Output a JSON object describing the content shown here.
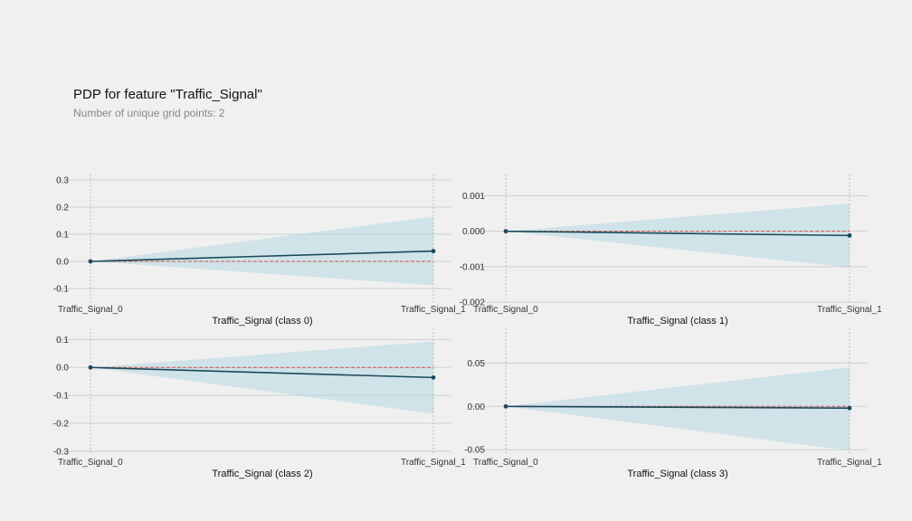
{
  "header": {
    "title": "PDP for feature \"Traffic_Signal\"",
    "subtitle": "Number of unique grid points: 2"
  },
  "colors": {
    "line": "#1a4a5a",
    "band": "#a8d2e0",
    "baseline": "#d9534f",
    "grid": "#d0d0d0",
    "background": "#f0f0f0"
  },
  "chart_data": [
    {
      "type": "line",
      "xlabel": "Traffic_Signal (class 0)",
      "x": [
        "Traffic_Signal_0",
        "Traffic_Signal_1"
      ],
      "y": [
        0.0,
        0.038
      ],
      "upper": [
        0.0,
        0.165
      ],
      "lower": [
        0.0,
        -0.088
      ],
      "ylim": [
        -0.15,
        0.32
      ],
      "yticks": [
        0.3,
        0.2,
        0.1,
        0.0,
        -0.1
      ],
      "ytick_labels": [
        "0.3",
        "0.2",
        "0.1",
        "0.0",
        "-0.1"
      ]
    },
    {
      "type": "line",
      "xlabel": "Traffic_Signal (class 1)",
      "x": [
        "Traffic_Signal_0",
        "Traffic_Signal_1"
      ],
      "y": [
        0.0,
        -0.00012
      ],
      "upper": [
        0.0,
        0.00078
      ],
      "lower": [
        0.0,
        -0.00102
      ],
      "ylim": [
        -0.002,
        0.0016
      ],
      "yticks": [
        0.001,
        0.0,
        -0.001,
        -0.002
      ],
      "ytick_labels": [
        "0.001",
        "0.000",
        "-0.001",
        "-0.002"
      ]
    },
    {
      "type": "line",
      "xlabel": "Traffic_Signal (class 2)",
      "x": [
        "Traffic_Signal_0",
        "Traffic_Signal_1"
      ],
      "y": [
        0.0,
        -0.036
      ],
      "upper": [
        0.0,
        0.093
      ],
      "lower": [
        0.0,
        -0.166
      ],
      "ylim": [
        -0.31,
        0.14
      ],
      "yticks": [
        0.1,
        0.0,
        -0.1,
        -0.2,
        -0.3
      ],
      "ytick_labels": [
        "0.1",
        "0.0",
        "-0.1",
        "-0.2",
        "-0.3"
      ]
    },
    {
      "type": "line",
      "xlabel": "Traffic_Signal (class 3)",
      "x": [
        "Traffic_Signal_0",
        "Traffic_Signal_1"
      ],
      "y": [
        0.0,
        -0.002
      ],
      "upper": [
        0.0,
        0.045
      ],
      "lower": [
        0.0,
        -0.051
      ],
      "ylim": [
        -0.055,
        0.09
      ],
      "yticks": [
        0.05,
        0.0,
        -0.05
      ],
      "ytick_labels": [
        "0.05",
        "0.00",
        "-0.05"
      ]
    }
  ]
}
